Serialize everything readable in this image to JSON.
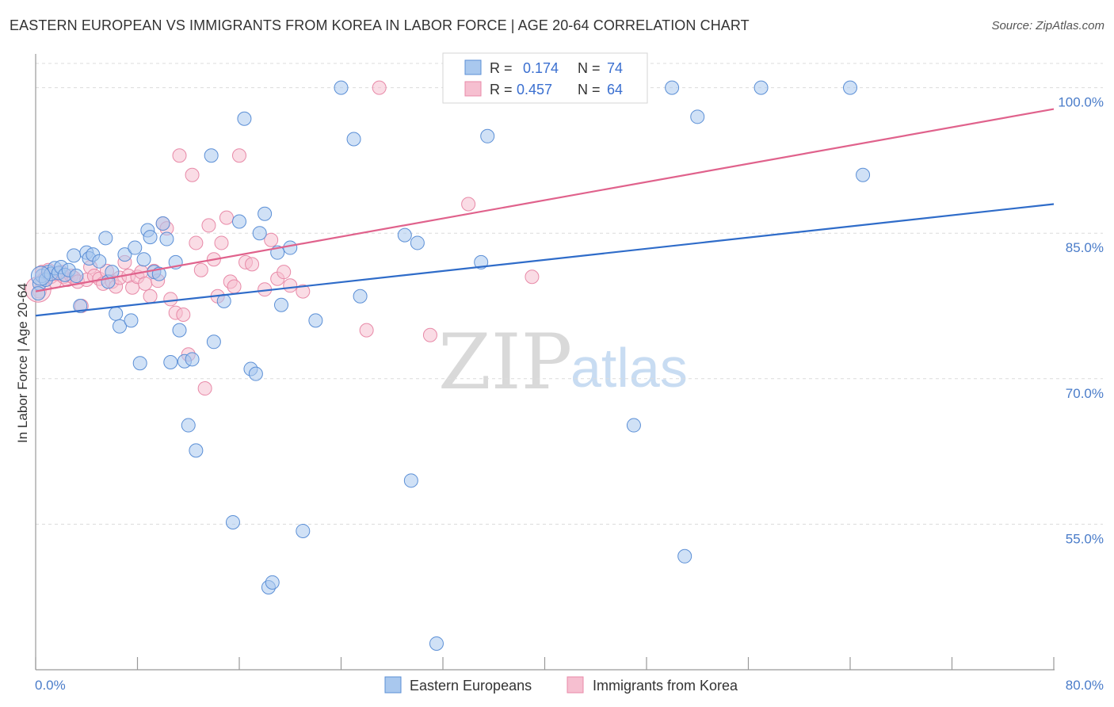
{
  "header": {
    "title": "EASTERN EUROPEAN VS IMMIGRANTS FROM KOREA IN LABOR FORCE | AGE 20-64 CORRELATION CHART",
    "source": "Source: ZipAtlas.com"
  },
  "watermark": {
    "zip": "ZIP",
    "atlas": "atlas"
  },
  "colors": {
    "blue_fill": "#a9c8ee",
    "blue_stroke": "#5b8fd6",
    "blue_line": "#2f6cc9",
    "pink_fill": "#f6bfd0",
    "pink_stroke": "#e88aa8",
    "pink_line": "#e0628c",
    "tick_label": "#4a7cc9",
    "grid": "#dcdcdc"
  },
  "legend_top": {
    "row1": {
      "r_label": "R =",
      "r_value": "0.174",
      "n_label": "N =",
      "n_value": "74"
    },
    "row2": {
      "r_label": "R =",
      "r_value": "0.457",
      "n_label": "N =",
      "n_value": "64"
    }
  },
  "chart_data": {
    "type": "scatter",
    "ylabel": "In Labor Force | Age 20-64",
    "xlim": [
      0,
      80
    ],
    "ylim": [
      40,
      102.5
    ],
    "x_tick_labels": [
      "0.0%",
      "80.0%"
    ],
    "y_ticks": [
      55,
      70,
      85,
      100
    ],
    "y_tick_labels": [
      "55.0%",
      "70.0%",
      "85.0%",
      "100.0%"
    ],
    "grid": "horizontal dashed",
    "legend_placement": "top-center and bottom",
    "series": [
      {
        "name": "Eastern Europeans",
        "color": "#5b8fd6",
        "trend": {
          "x": [
            0,
            80
          ],
          "y": [
            76.5,
            88.0
          ]
        },
        "points": [
          [
            0.3,
            79.8
          ],
          [
            0.5,
            80.6
          ],
          [
            0.8,
            80.2
          ],
          [
            1.0,
            81.0
          ],
          [
            1.2,
            80.8
          ],
          [
            1.5,
            81.4
          ],
          [
            1.8,
            80.9
          ],
          [
            2.0,
            81.5
          ],
          [
            2.3,
            80.7
          ],
          [
            2.6,
            81.2
          ],
          [
            3.0,
            82.7
          ],
          [
            3.2,
            80.6
          ],
          [
            3.5,
            77.5
          ],
          [
            4.0,
            83.0
          ],
          [
            4.2,
            82.4
          ],
          [
            4.5,
            82.8
          ],
          [
            5.0,
            82.1
          ],
          [
            5.5,
            84.5
          ],
          [
            5.7,
            80.0
          ],
          [
            6.0,
            81.0
          ],
          [
            6.3,
            76.7
          ],
          [
            6.6,
            75.4
          ],
          [
            7.0,
            82.8
          ],
          [
            7.5,
            76.0
          ],
          [
            7.8,
            83.5
          ],
          [
            8.2,
            71.6
          ],
          [
            8.5,
            82.3
          ],
          [
            8.8,
            85.3
          ],
          [
            9.0,
            84.6
          ],
          [
            9.3,
            81.0
          ],
          [
            9.7,
            80.8
          ],
          [
            10.0,
            86.0
          ],
          [
            10.3,
            84.4
          ],
          [
            10.6,
            71.7
          ],
          [
            11.0,
            82.0
          ],
          [
            11.3,
            75.0
          ],
          [
            11.7,
            71.8
          ],
          [
            12.0,
            65.2
          ],
          [
            12.3,
            72.0
          ],
          [
            12.6,
            62.6
          ],
          [
            13.8,
            93.0
          ],
          [
            14.0,
            73.8
          ],
          [
            14.8,
            78.0
          ],
          [
            15.5,
            55.2
          ],
          [
            16.0,
            86.2
          ],
          [
            16.4,
            96.8
          ],
          [
            16.9,
            71.0
          ],
          [
            17.3,
            70.5
          ],
          [
            17.6,
            85.0
          ],
          [
            18.0,
            87.0
          ],
          [
            18.3,
            48.5
          ],
          [
            18.6,
            49.0
          ],
          [
            19.0,
            83.0
          ],
          [
            19.3,
            77.6
          ],
          [
            20.0,
            83.5
          ],
          [
            21.0,
            54.3
          ],
          [
            22.0,
            76.0
          ],
          [
            24.0,
            100.0
          ],
          [
            25.0,
            94.7
          ],
          [
            25.5,
            78.5
          ],
          [
            29.0,
            84.8
          ],
          [
            29.5,
            59.5
          ],
          [
            30.0,
            84.0
          ],
          [
            31.5,
            42.7
          ],
          [
            35.0,
            82.0
          ],
          [
            35.5,
            95.0
          ],
          [
            47.0,
            65.2
          ],
          [
            50.0,
            100.0
          ],
          [
            51.0,
            51.7
          ],
          [
            52.0,
            97.0
          ],
          [
            57.0,
            100.0
          ],
          [
            64.0,
            100.0
          ],
          [
            65.0,
            91.0
          ],
          [
            0.2,
            78.8
          ]
        ]
      },
      {
        "name": "Immigrants from Korea",
        "color": "#e88aa8",
        "trend": {
          "x": [
            0,
            80
          ],
          "y": [
            79.0,
            97.8
          ]
        },
        "points": [
          [
            0.3,
            79.0
          ],
          [
            0.5,
            81.0
          ],
          [
            0.7,
            80.3
          ],
          [
            1.0,
            81.2
          ],
          [
            1.2,
            80.5
          ],
          [
            1.5,
            80.0
          ],
          [
            1.7,
            80.8
          ],
          [
            2.0,
            81.0
          ],
          [
            2.2,
            80.5
          ],
          [
            2.5,
            80.2
          ],
          [
            2.8,
            80.6
          ],
          [
            3.0,
            80.4
          ],
          [
            3.3,
            80.0
          ],
          [
            3.6,
            77.5
          ],
          [
            4.0,
            80.2
          ],
          [
            4.3,
            81.5
          ],
          [
            4.6,
            80.6
          ],
          [
            5.0,
            80.3
          ],
          [
            5.3,
            79.8
          ],
          [
            5.6,
            81.1
          ],
          [
            6.0,
            80.0
          ],
          [
            6.3,
            79.5
          ],
          [
            6.6,
            80.4
          ],
          [
            7.0,
            82.0
          ],
          [
            7.3,
            80.6
          ],
          [
            7.6,
            79.4
          ],
          [
            8.0,
            80.5
          ],
          [
            8.3,
            81.0
          ],
          [
            8.6,
            79.8
          ],
          [
            9.0,
            78.5
          ],
          [
            9.3,
            81.1
          ],
          [
            9.6,
            80.1
          ],
          [
            10.0,
            86.0
          ],
          [
            10.3,
            85.5
          ],
          [
            10.6,
            78.2
          ],
          [
            11.0,
            76.8
          ],
          [
            11.3,
            93.0
          ],
          [
            11.6,
            76.6
          ],
          [
            12.0,
            72.5
          ],
          [
            12.3,
            91.0
          ],
          [
            12.6,
            84.0
          ],
          [
            13.0,
            81.2
          ],
          [
            13.3,
            69.0
          ],
          [
            13.6,
            85.8
          ],
          [
            14.0,
            82.3
          ],
          [
            14.3,
            78.5
          ],
          [
            14.6,
            84.0
          ],
          [
            15.0,
            86.6
          ],
          [
            15.3,
            80.0
          ],
          [
            15.6,
            79.5
          ],
          [
            16.0,
            93.0
          ],
          [
            16.5,
            82.0
          ],
          [
            17.0,
            81.8
          ],
          [
            18.0,
            79.2
          ],
          [
            18.5,
            84.3
          ],
          [
            19.0,
            80.3
          ],
          [
            19.5,
            81.0
          ],
          [
            20.0,
            79.6
          ],
          [
            21.0,
            79.0
          ],
          [
            26.0,
            75.0
          ],
          [
            27.0,
            100.0
          ],
          [
            31.0,
            74.5
          ],
          [
            34.0,
            88.0
          ],
          [
            39.0,
            80.5
          ]
        ]
      }
    ]
  },
  "bottom_legend": {
    "blue_label": "Eastern Europeans",
    "pink_label": "Immigrants from Korea"
  }
}
